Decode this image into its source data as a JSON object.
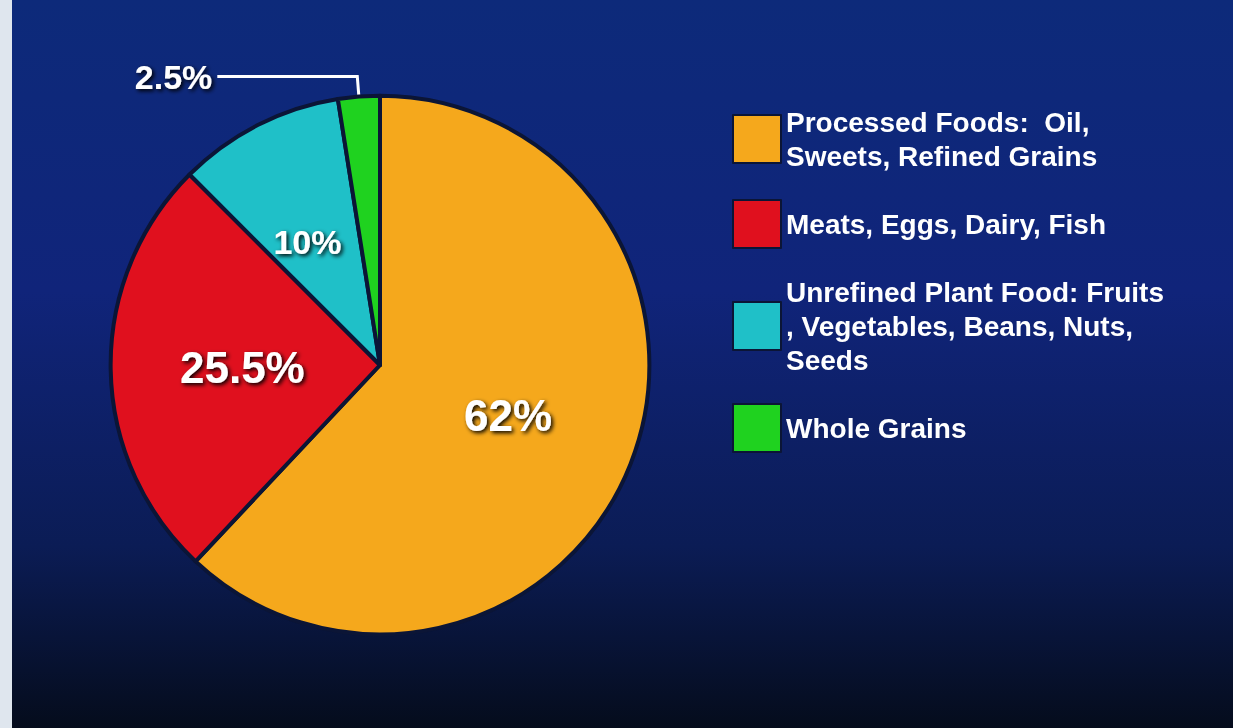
{
  "chart_data": {
    "type": "pie",
    "categories": [
      "Processed Foods:  Oil, Sweets, Refined Grains",
      "Meats, Eggs, Dairy, Fish",
      "Unrefined Plant Food: Fruits, Vegetables, Beans, Nuts, Seeds",
      "Whole Grains"
    ],
    "values": [
      62,
      25.5,
      10,
      2.5
    ],
    "colors": [
      "#f5a81c",
      "#e0101e",
      "#1fc0c8",
      "#1fd21f"
    ],
    "value_labels": [
      "62%",
      "25.5%",
      "10%",
      "2.5%"
    ],
    "legend": "right"
  }
}
